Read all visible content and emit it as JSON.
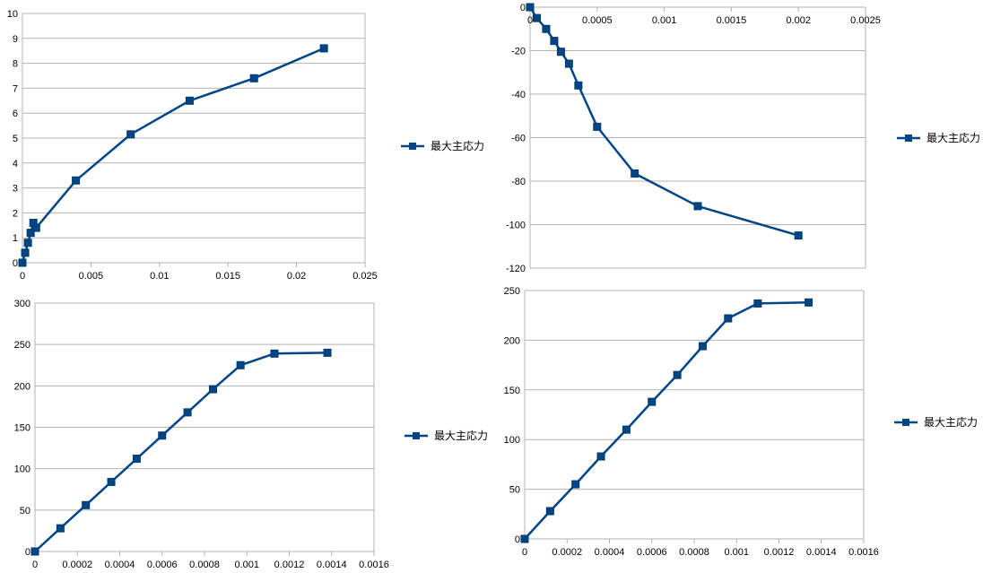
{
  "colors": {
    "series": "#004586",
    "grid": "#b3b3b3",
    "axis_text": "#000000"
  },
  "chart_data": [
    {
      "type": "line",
      "legend_position": "right",
      "grid": true,
      "x": [
        0,
        0.0002,
        0.0004,
        0.0006,
        0.0008,
        0.001,
        0.0039,
        0.0079,
        0.0122,
        0.0169,
        0.022
      ],
      "series": [
        {
          "name": "最大主応力",
          "values": [
            0,
            0.4,
            0.8,
            1.2,
            1.6,
            1.4,
            3.3,
            5.15,
            6.5,
            7.4,
            8.6
          ]
        }
      ],
      "xlim": [
        0,
        0.025
      ],
      "ylim": [
        0,
        10
      ],
      "xticks": [
        "0",
        "0.005",
        "0.01",
        "0.015",
        "0.02",
        "0.025"
      ],
      "yticks": [
        "0",
        "1",
        "2",
        "3",
        "4",
        "5",
        "6",
        "7",
        "8",
        "9",
        "10"
      ]
    },
    {
      "type": "line",
      "legend_position": "right",
      "grid": true,
      "x": [
        0,
        5e-05,
        0.00012,
        0.00018,
        0.00023,
        0.00029,
        0.00036,
        0.0005,
        0.00078,
        0.00125,
        0.002
      ],
      "series": [
        {
          "name": "最大主応力",
          "values": [
            0,
            -5,
            -10,
            -15.5,
            -20.5,
            -26,
            -36,
            -55,
            -76.5,
            -91.5,
            -105
          ]
        }
      ],
      "xlim": [
        0,
        0.0025
      ],
      "ylim": [
        -120,
        0
      ],
      "xticks": [
        "0",
        "0.0005",
        "0.001",
        "0.0015",
        "0.002",
        "0.0025"
      ],
      "yticks": [
        "0",
        "-20",
        "-40",
        "-60",
        "-80",
        "-100",
        "-120"
      ]
    },
    {
      "type": "line",
      "legend_position": "right",
      "grid": true,
      "x": [
        0,
        0.00012,
        0.00024,
        0.00036,
        0.00048,
        0.0006,
        0.00072,
        0.00084,
        0.00097,
        0.00113,
        0.00138
      ],
      "series": [
        {
          "name": "最大主応力",
          "values": [
            0,
            28,
            56,
            84,
            112,
            140,
            168,
            196,
            225,
            239,
            240
          ]
        }
      ],
      "xlim": [
        0,
        0.0016
      ],
      "ylim": [
        0,
        300
      ],
      "xticks": [
        "0",
        "0.0002",
        "0.0004",
        "0.0006",
        "0.0008",
        "0.001",
        "0.0012",
        "0.0014",
        "0.0016"
      ],
      "yticks": [
        "0",
        "50",
        "100",
        "150",
        "200",
        "250",
        "300"
      ]
    },
    {
      "type": "line",
      "legend_position": "right",
      "grid": true,
      "x": [
        0,
        0.00012,
        0.00024,
        0.00036,
        0.00048,
        0.0006,
        0.00072,
        0.00084,
        0.00096,
        0.0011,
        0.00134
      ],
      "series": [
        {
          "name": "最大主応力",
          "values": [
            0,
            28,
            55,
            83,
            110,
            138,
            165,
            194,
            222,
            237,
            238
          ]
        }
      ],
      "xlim": [
        0,
        0.0016
      ],
      "ylim": [
        0,
        250
      ],
      "xticks": [
        "0",
        "0.0002",
        "0.0004",
        "0.0006",
        "0.0008",
        "0.001",
        "0.0012",
        "0.0014",
        "0.0016"
      ],
      "yticks": [
        "0",
        "50",
        "100",
        "150",
        "200",
        "250"
      ]
    }
  ]
}
